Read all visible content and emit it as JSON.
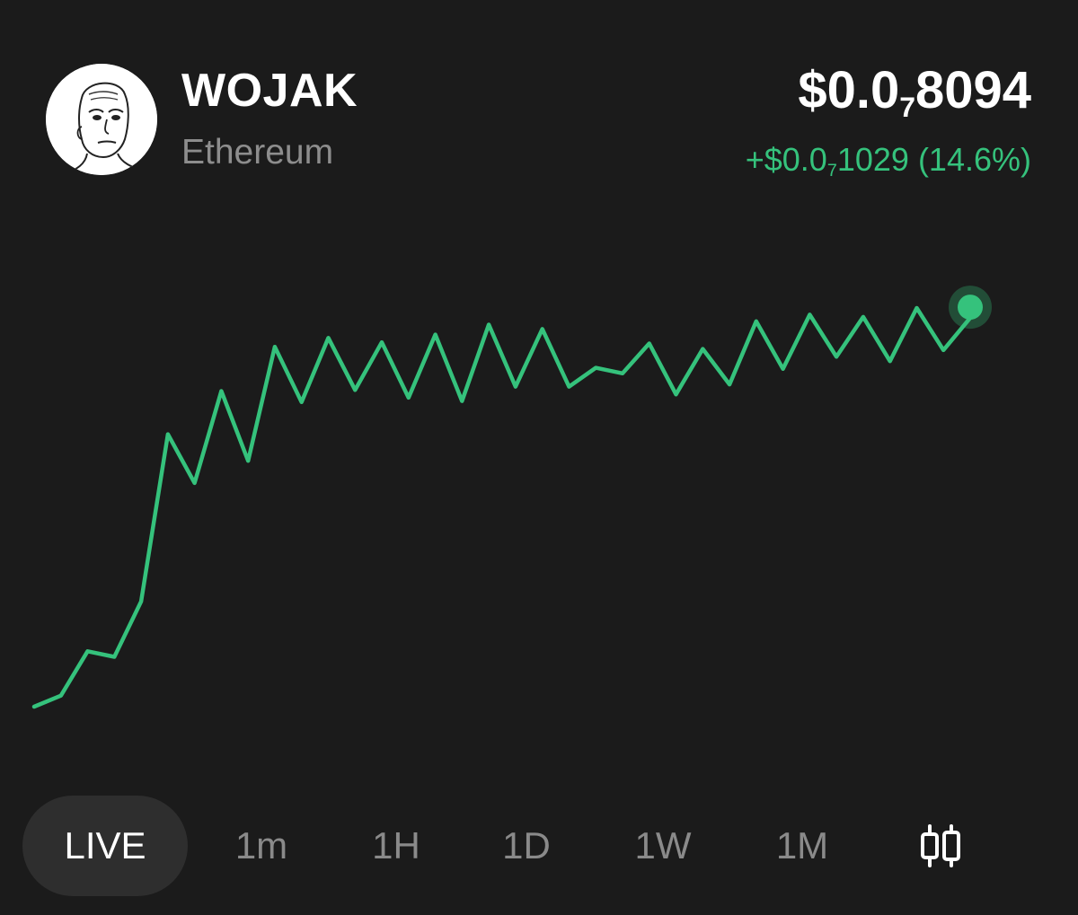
{
  "token": {
    "name": "WOJAK",
    "chain": "Ethereum",
    "avatar_icon": "wojak-face-icon"
  },
  "price": {
    "prefix": "$0.0",
    "zeros_subscript": "7",
    "digits": "8094"
  },
  "change": {
    "prefix": "+$0.0",
    "zeros_subscript": "7",
    "digits": "1029",
    "percent": "(14.6%)",
    "color": "#35c27c"
  },
  "tabs": [
    {
      "label": "LIVE",
      "active": true
    },
    {
      "label": "1m",
      "active": false
    },
    {
      "label": "1H",
      "active": false
    },
    {
      "label": "1D",
      "active": false
    },
    {
      "label": "1W",
      "active": false
    },
    {
      "label": "1M",
      "active": false
    }
  ],
  "candle_toggle_icon": "candlestick-chart-icon",
  "chart_data": {
    "type": "line",
    "color": "#35c27c",
    "grid": false,
    "values": [
      0.0,
      1.0,
      5.0,
      4.5,
      9.5,
      24.6,
      20.2,
      28.5,
      22.2,
      32.5,
      27.5,
      33.3,
      28.6,
      32.9,
      27.9,
      33.6,
      27.6,
      34.5,
      28.9,
      34.1,
      28.9,
      30.6,
      30.1,
      32.8,
      28.2,
      32.3,
      29.1,
      34.8,
      30.5,
      35.4,
      31.6,
      35.2,
      31.2,
      36.0,
      32.2,
      35.1
    ],
    "last_point_marker": true
  }
}
